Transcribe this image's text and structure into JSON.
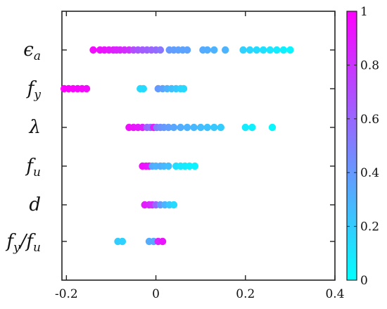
{
  "chart_data": {
    "type": "scatter",
    "title": "",
    "xlabel": "",
    "ylabel": "",
    "xlim": [
      -0.21,
      0.4
    ],
    "xticks": [
      -0.2,
      0,
      0.2,
      0.4
    ],
    "xtick_labels": [
      "-0.2",
      "0",
      "0.2",
      "0.4"
    ],
    "grid": false,
    "colormap": {
      "name": "cool",
      "low_color": "#00ffff",
      "high_color": "#ff00ff",
      "range": [
        0,
        1
      ],
      "ticks": [
        0,
        0.2,
        0.4,
        0.6,
        0.8,
        1
      ],
      "tick_labels": [
        "0",
        "0.2",
        "0.4",
        "0.6",
        "0.8",
        "1"
      ]
    },
    "categories": [
      {
        "label": "ϵa",
        "label_base": "ϵ",
        "label_sub": "a",
        "points": [
          [
            -0.14,
            0.95
          ],
          [
            -0.125,
            0.93
          ],
          [
            -0.115,
            0.92
          ],
          [
            -0.105,
            0.9
          ],
          [
            -0.095,
            0.88
          ],
          [
            -0.088,
            0.86
          ],
          [
            -0.08,
            0.85
          ],
          [
            -0.07,
            0.83
          ],
          [
            -0.06,
            0.8
          ],
          [
            -0.05,
            0.7
          ],
          [
            -0.04,
            0.66
          ],
          [
            -0.03,
            0.64
          ],
          [
            -0.02,
            0.62
          ],
          [
            -0.01,
            0.6
          ],
          [
            0.0,
            0.58
          ],
          [
            0.01,
            0.54
          ],
          [
            0.03,
            0.4
          ],
          [
            0.04,
            0.38
          ],
          [
            0.05,
            0.37
          ],
          [
            0.06,
            0.36
          ],
          [
            0.07,
            0.36
          ],
          [
            0.105,
            0.33
          ],
          [
            0.115,
            0.32
          ],
          [
            0.13,
            0.3
          ],
          [
            0.155,
            0.3
          ],
          [
            0.195,
            0.18
          ],
          [
            0.21,
            0.16
          ],
          [
            0.225,
            0.14
          ],
          [
            0.24,
            0.12
          ],
          [
            0.255,
            0.1
          ],
          [
            0.27,
            0.08
          ],
          [
            0.285,
            0.06
          ],
          [
            0.3,
            0.04
          ]
        ]
      },
      {
        "label": "fy",
        "label_base": "f",
        "label_sub": "y",
        "points": [
          [
            -0.205,
            1.0
          ],
          [
            -0.195,
            0.99
          ],
          [
            -0.185,
            0.98
          ],
          [
            -0.175,
            0.97
          ],
          [
            -0.165,
            0.96
          ],
          [
            -0.155,
            0.95
          ],
          [
            -0.035,
            0.15
          ],
          [
            -0.028,
            0.14
          ],
          [
            0.005,
            0.4
          ],
          [
            0.015,
            0.36
          ],
          [
            0.025,
            0.3
          ],
          [
            0.035,
            0.25
          ],
          [
            0.045,
            0.22
          ],
          [
            0.055,
            0.18
          ],
          [
            0.062,
            0.15
          ]
        ]
      },
      {
        "label": "λ",
        "label_base": "λ",
        "label_sub": "",
        "points": [
          [
            -0.06,
            0.95
          ],
          [
            -0.05,
            0.92
          ],
          [
            -0.04,
            0.9
          ],
          [
            -0.03,
            0.88
          ],
          [
            -0.02,
            0.6
          ],
          [
            -0.012,
            0.55
          ],
          [
            -0.005,
            0.9
          ],
          [
            0.002,
            0.5
          ],
          [
            0.01,
            0.45
          ],
          [
            0.018,
            0.4
          ],
          [
            0.028,
            0.38
          ],
          [
            0.04,
            0.35
          ],
          [
            0.055,
            0.32
          ],
          [
            0.07,
            0.3
          ],
          [
            0.085,
            0.28
          ],
          [
            0.1,
            0.26
          ],
          [
            0.115,
            0.24
          ],
          [
            0.13,
            0.22
          ],
          [
            0.145,
            0.2
          ],
          [
            0.2,
            0.08
          ],
          [
            0.215,
            0.06
          ],
          [
            0.26,
            0.03
          ]
        ]
      },
      {
        "label": "fu",
        "label_base": "f",
        "label_sub": "u",
        "points": [
          [
            -0.03,
            0.95
          ],
          [
            -0.022,
            0.92
          ],
          [
            -0.015,
            0.9
          ],
          [
            -0.008,
            0.35
          ],
          [
            0.0,
            0.3
          ],
          [
            0.01,
            0.32
          ],
          [
            0.018,
            0.28
          ],
          [
            0.028,
            0.25
          ],
          [
            0.045,
            0.12
          ],
          [
            0.055,
            0.1
          ],
          [
            0.065,
            0.08
          ],
          [
            0.075,
            0.06
          ],
          [
            0.087,
            0.05
          ]
        ]
      },
      {
        "label": "d",
        "label_base": "d",
        "label_sub": "",
        "points": [
          [
            -0.025,
            0.9
          ],
          [
            -0.015,
            0.85
          ],
          [
            -0.008,
            0.82
          ],
          [
            0.0,
            0.6
          ],
          [
            0.01,
            0.4
          ],
          [
            0.02,
            0.3
          ],
          [
            0.03,
            0.22
          ],
          [
            0.04,
            0.15
          ]
        ]
      },
      {
        "label": "fy/fu",
        "label_base": "f",
        "label_sub": "y",
        "label_mid": "/f",
        "label_sub2": "u",
        "points": [
          [
            -0.085,
            0.2
          ],
          [
            -0.075,
            0.18
          ],
          [
            -0.015,
            0.32
          ],
          [
            -0.005,
            0.34
          ],
          [
            0.005,
            0.85
          ],
          [
            0.015,
            0.92
          ]
        ]
      }
    ]
  }
}
